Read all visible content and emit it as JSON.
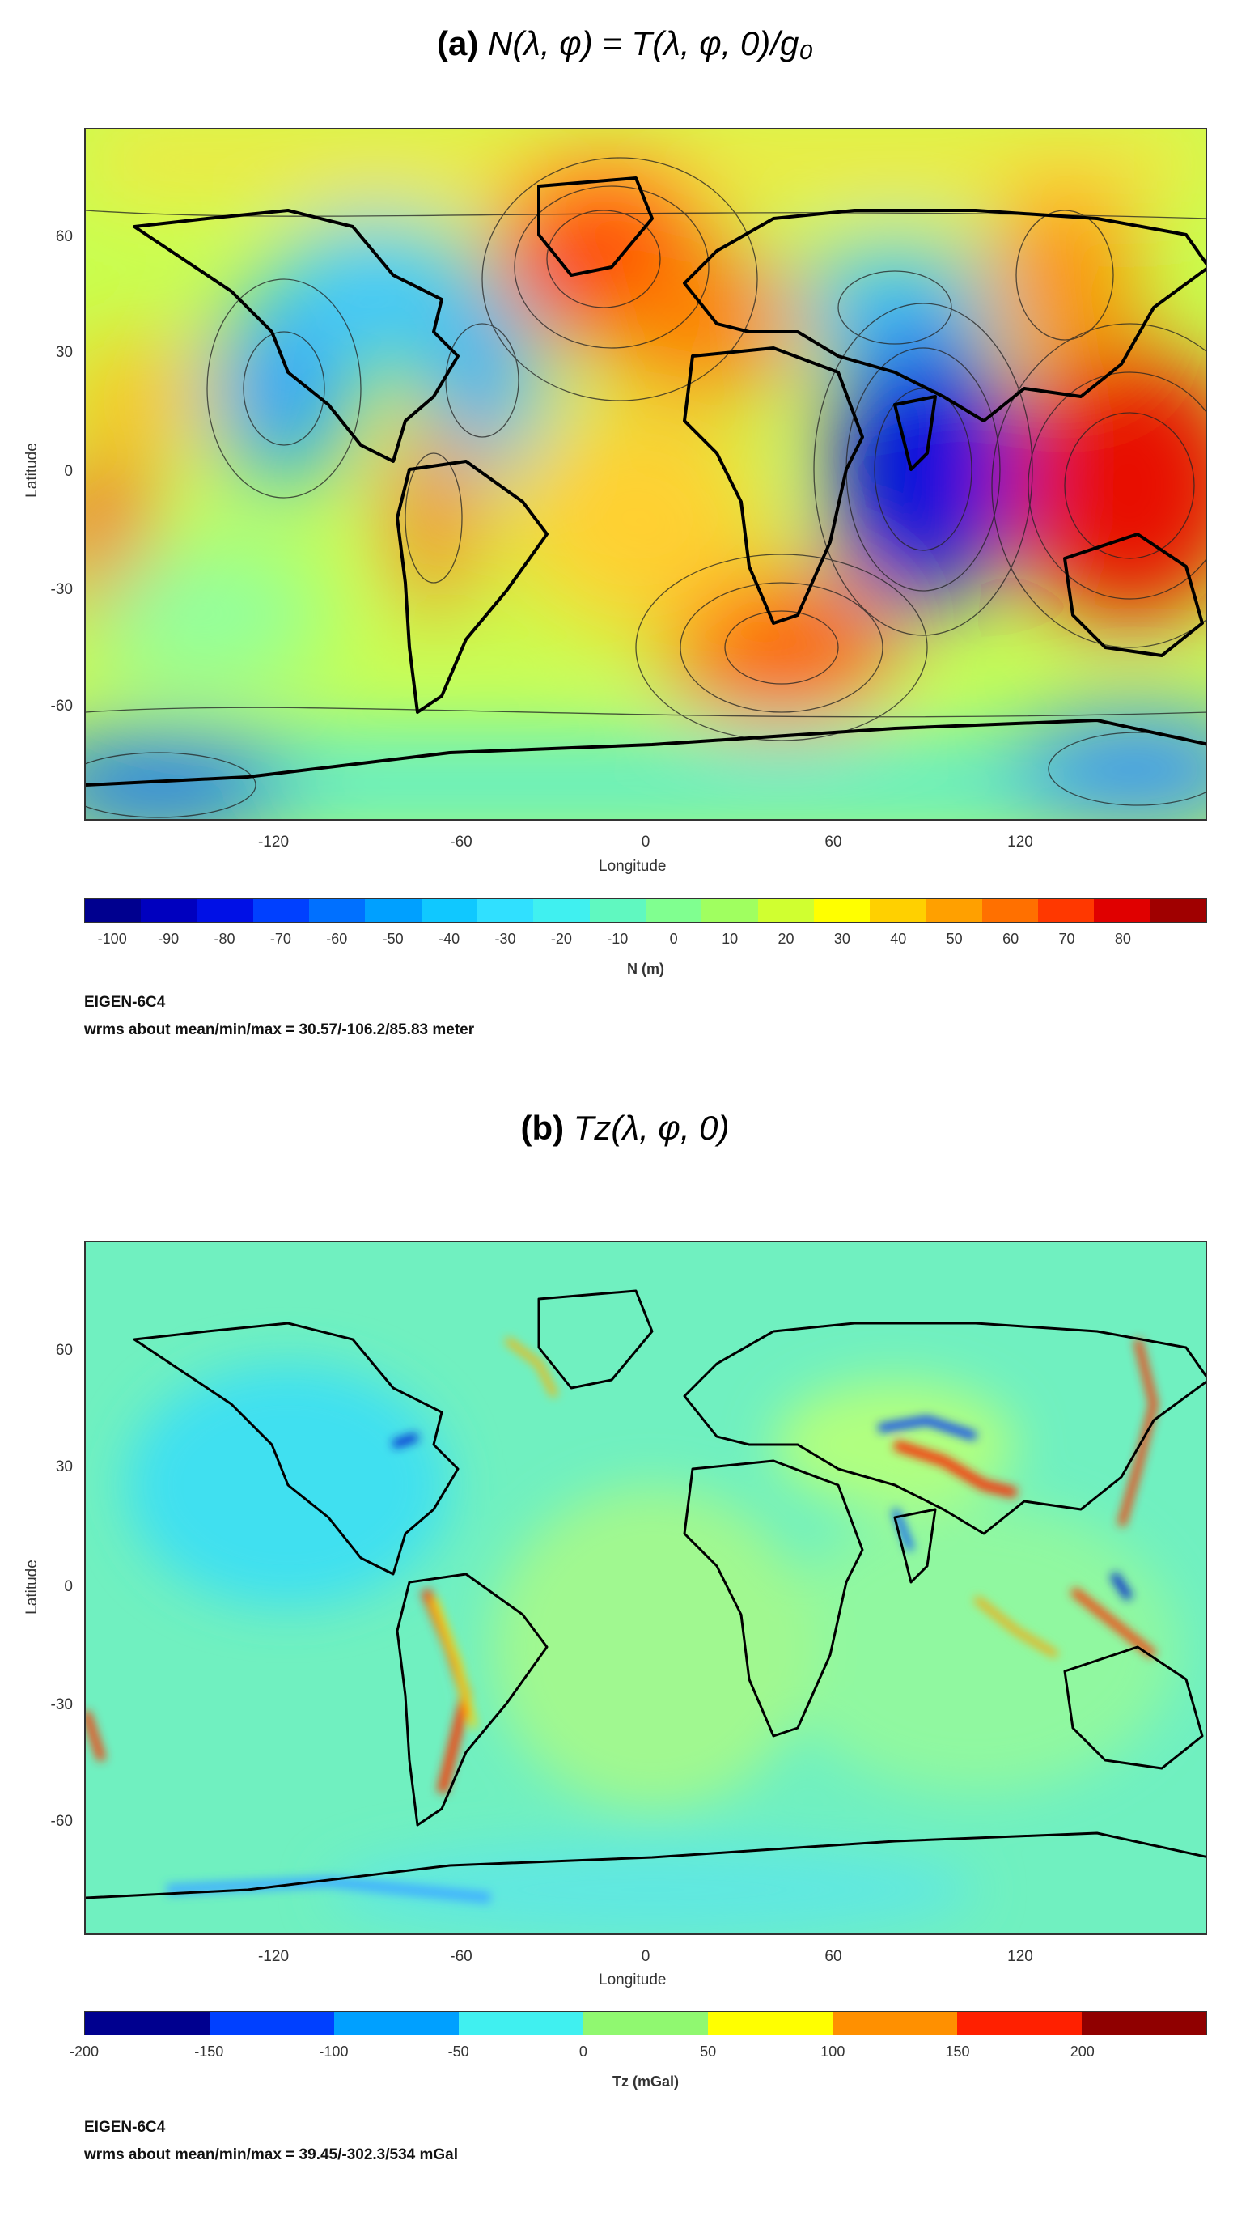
{
  "panel_a": {
    "title_prefix": "(a)",
    "title_formula": "N(λ, φ) = T(λ, φ, 0)/g₀",
    "ylabel": "Latitude",
    "xlabel": "Longitude",
    "yticks": [
      "60",
      "30",
      "0",
      "-30",
      "-60"
    ],
    "xticks": [
      "-120",
      "-60",
      "0",
      "60",
      "120"
    ],
    "colorbar_ticks": [
      "-100",
      "-90",
      "-80",
      "-70",
      "-60",
      "-50",
      "-40",
      "-30",
      "-20",
      "-10",
      "0",
      "10",
      "20",
      "30",
      "40",
      "50",
      "60",
      "70",
      "80"
    ],
    "colorbar_colors": [
      "#00008f",
      "#0000bf",
      "#0010e6",
      "#0040ff",
      "#0070ff",
      "#00a0ff",
      "#10c8ff",
      "#30e0ff",
      "#40f0f0",
      "#60f8c0",
      "#80ff90",
      "#a0ff60",
      "#d0ff30",
      "#ffff00",
      "#ffd000",
      "#ffa000",
      "#ff7000",
      "#ff3800",
      "#e00000",
      "#a00000"
    ],
    "colorbar_label": "N (m)",
    "model": "EIGEN-6C4",
    "stats": "wrms about mean/min/max = 30.57/-106.2/85.83 meter"
  },
  "panel_b": {
    "title_prefix": "(b)",
    "title_formula": "Tz(λ, φ, 0)",
    "ylabel": "Latitude",
    "xlabel": "Longitude",
    "yticks": [
      "60",
      "30",
      "0",
      "-30",
      "-60"
    ],
    "xticks": [
      "-120",
      "-60",
      "0",
      "60",
      "120"
    ],
    "colorbar_ticks": [
      "-200",
      "-150",
      "-100",
      "-50",
      "0",
      "50",
      "100",
      "150",
      "200"
    ],
    "colorbar_colors": [
      "#00008f",
      "#0040ff",
      "#00a0ff",
      "#40f0f0",
      "#90f870",
      "#ffff00",
      "#ff9000",
      "#ff2000",
      "#900000"
    ],
    "colorbar_label": "Tz (mGal)",
    "model": "EIGEN-6C4",
    "stats": "wrms about mean/min/max = 39.45/-302.3/534 mGal"
  }
}
